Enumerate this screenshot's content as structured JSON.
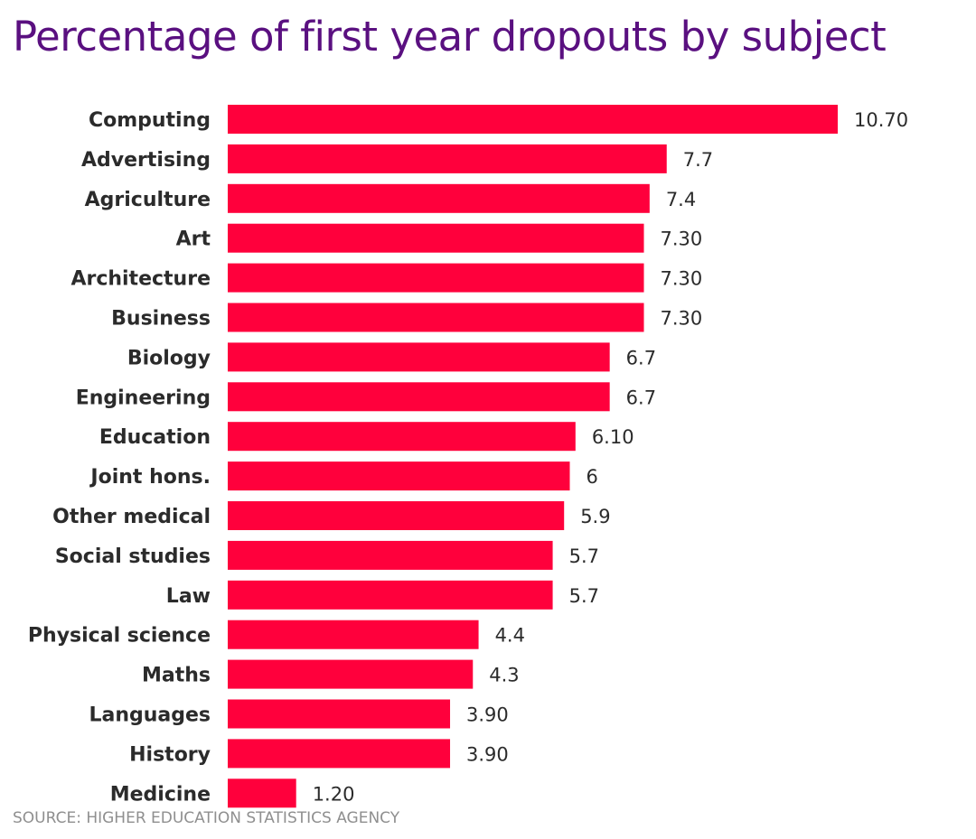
{
  "chart_data": {
    "type": "bar",
    "orientation": "horizontal",
    "title": "Percentage of first year dropouts by subject",
    "source": "SOURCE: HIGHER EDUCATION STATISTICS AGENCY",
    "categories": [
      "Computing",
      "Advertising",
      "Agriculture",
      "Art",
      "Architecture",
      "Business",
      "Biology",
      "Engineering",
      "Education",
      "Joint hons.",
      "Other medical",
      "Social studies",
      "Law",
      "Physical science",
      "Maths",
      "Languages",
      "History",
      "Medicine"
    ],
    "values": [
      10.7,
      7.7,
      7.4,
      7.3,
      7.3,
      7.3,
      6.7,
      6.7,
      6.1,
      6,
      5.9,
      5.7,
      5.7,
      4.4,
      4.3,
      3.9,
      3.9,
      1.2
    ],
    "data_labels": [
      "10.70",
      "7.7",
      "7.4",
      "7.30",
      "7.30",
      "7.30",
      "6.7",
      "6.7",
      "6.10",
      "6",
      "5.9",
      "5.7",
      "5.7",
      "4.4",
      "4.3",
      "3.90",
      "3.90",
      "1.20"
    ],
    "xlim": [
      0,
      10.7
    ],
    "grid": false,
    "bar_color": "#ff003c",
    "title_color": "#5a1080"
  }
}
